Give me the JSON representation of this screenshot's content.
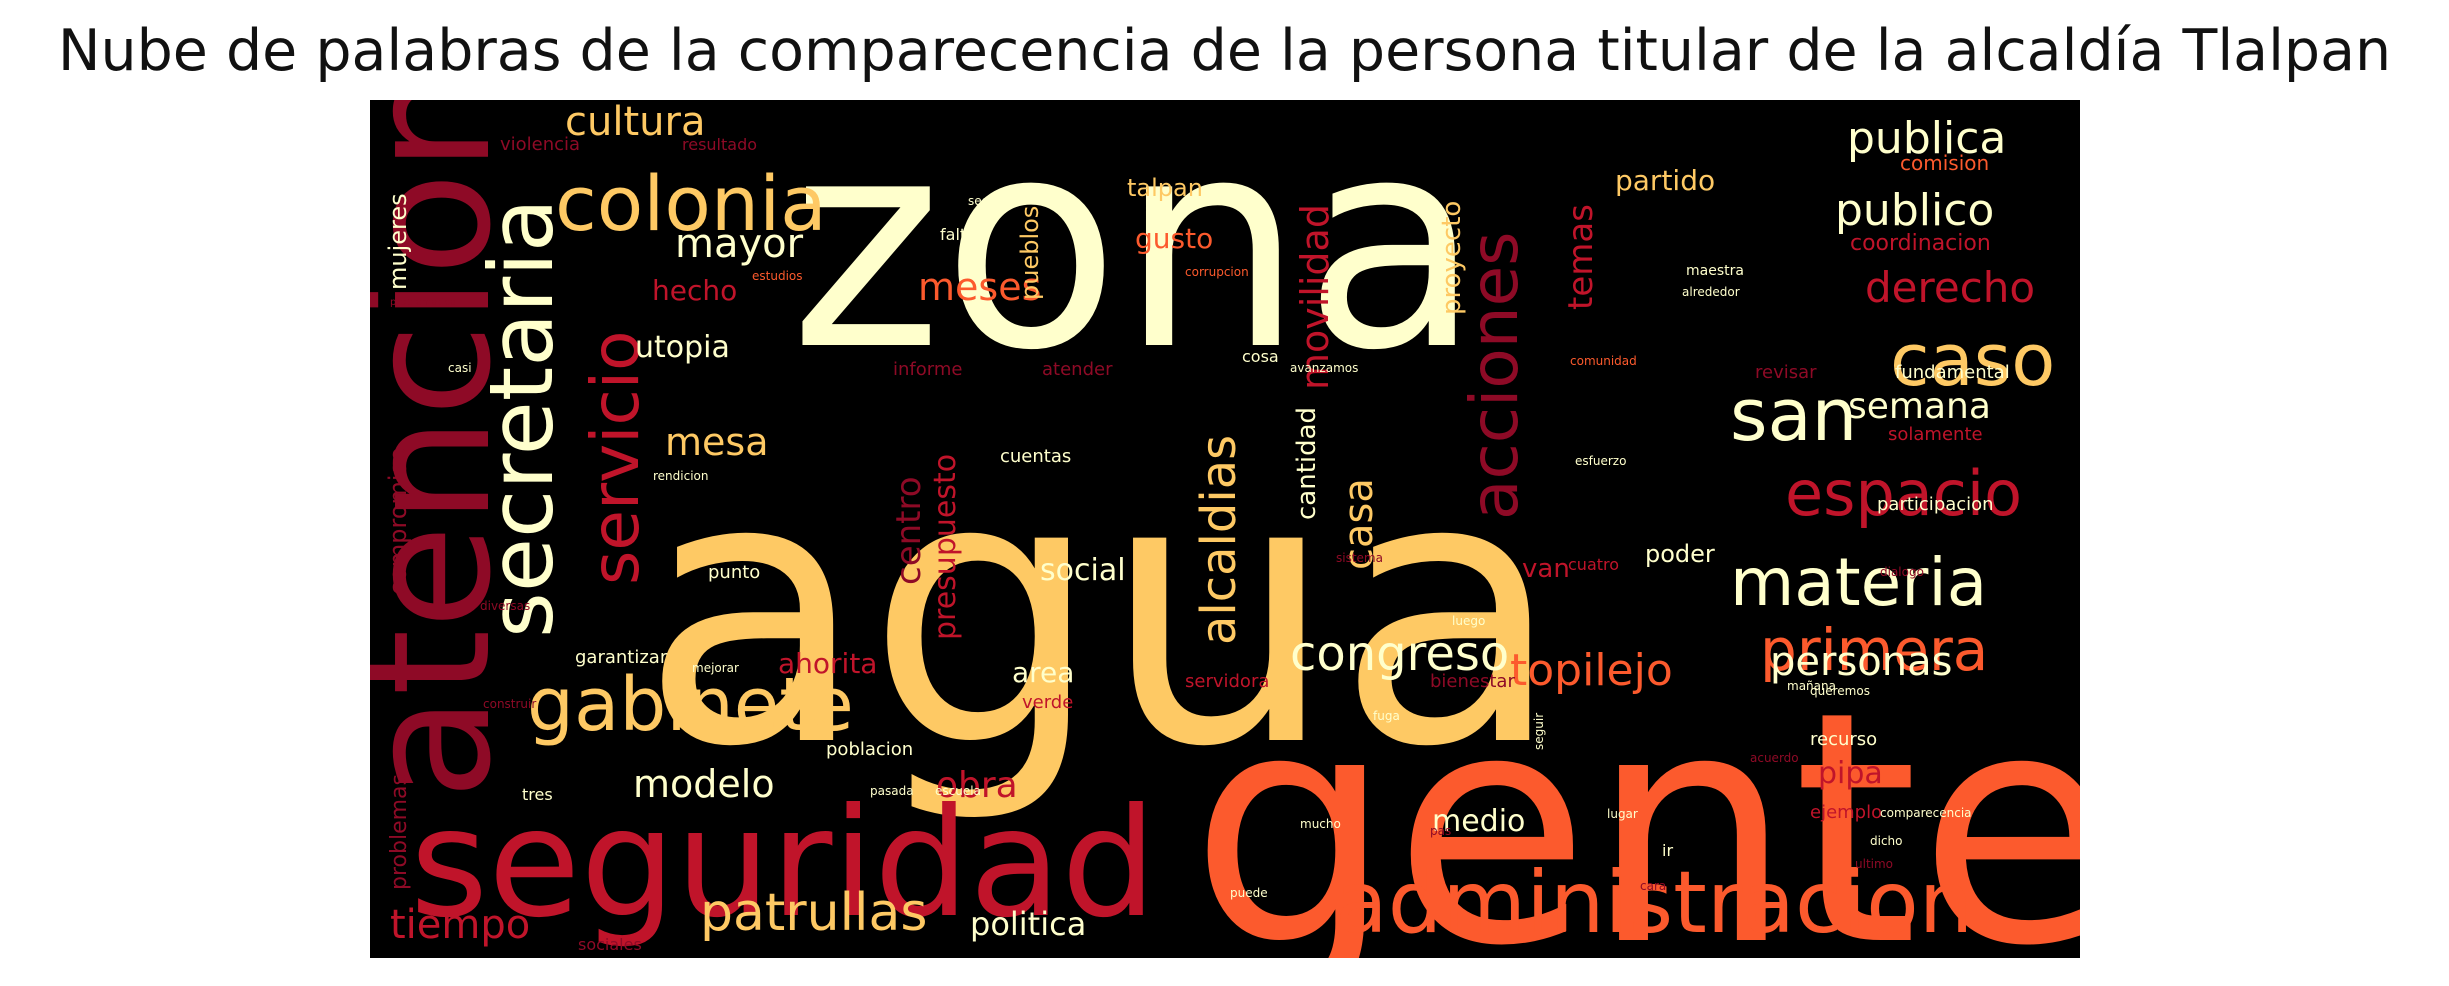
{
  "chart_data": {
    "type": "wordcloud",
    "title": "Nube de palabras de la comparecencia de la persona titular de la alcaldía Tlalpan",
    "background": "#000000",
    "palette": {
      "cream": "#FFFFCC",
      "gold": "#FEC964",
      "orange": "#FC5A2D",
      "red": "#C0142A",
      "darkred": "#8E0A26"
    },
    "words": [
      {
        "text": "zona",
        "weight": 1.0,
        "color": "#FFFFCC"
      },
      {
        "text": "agua",
        "weight": 0.98,
        "color": "#FEC964"
      },
      {
        "text": "gente",
        "weight": 0.93,
        "color": "#FC5A2D"
      },
      {
        "text": "atencion",
        "weight": 0.53,
        "color": "#8E0A26"
      },
      {
        "text": "seguridad",
        "weight": 0.53,
        "color": "#C0142A"
      },
      {
        "text": "secretaria",
        "weight": 0.29,
        "color": "#FFFFCC"
      },
      {
        "text": "colonia",
        "weight": 0.25,
        "color": "#FEC964"
      },
      {
        "text": "administracion",
        "weight": 0.26,
        "color": "#FC5A2D"
      },
      {
        "text": "gabinete",
        "weight": 0.24,
        "color": "#FEC964"
      },
      {
        "text": "acciones",
        "weight": 0.22,
        "color": "#8E0A26"
      },
      {
        "text": "servicio",
        "weight": 0.21,
        "color": "#C0142A"
      },
      {
        "text": "materia",
        "weight": 0.2,
        "color": "#FFFFCC"
      },
      {
        "text": "caso",
        "weight": 0.2,
        "color": "#FEC964"
      },
      {
        "text": "san",
        "weight": 0.2,
        "color": "#FFFFCC"
      },
      {
        "text": "espacio",
        "weight": 0.18,
        "color": "#C0142A"
      },
      {
        "text": "primera",
        "weight": 0.17,
        "color": "#FC5A2D"
      },
      {
        "text": "patrullas",
        "weight": 0.15,
        "color": "#FEC964"
      },
      {
        "text": "alcaldias",
        "weight": 0.14,
        "color": "#FEC964"
      },
      {
        "text": "congreso",
        "weight": 0.14,
        "color": "#FFFFCC"
      },
      {
        "text": "topilejo",
        "weight": 0.13,
        "color": "#FC5A2D"
      },
      {
        "text": "publico",
        "weight": 0.13,
        "color": "#FFFFCC"
      },
      {
        "text": "publica",
        "weight": 0.13,
        "color": "#FFFFCC"
      },
      {
        "text": "derecho",
        "weight": 0.13,
        "color": "#C0142A"
      },
      {
        "text": "tiempo",
        "weight": 0.13,
        "color": "#C0142A"
      },
      {
        "text": "movilidad",
        "weight": 0.12,
        "color": "#C0142A"
      },
      {
        "text": "personas",
        "weight": 0.12,
        "color": "#FFFFCC"
      },
      {
        "text": "cultura",
        "weight": 0.12,
        "color": "#FEC964"
      },
      {
        "text": "mayor",
        "weight": 0.12,
        "color": "#FFFFCC"
      },
      {
        "text": "meses",
        "weight": 0.12,
        "color": "#FC5A2D"
      },
      {
        "text": "modelo",
        "weight": 0.12,
        "color": "#FFFFCC"
      },
      {
        "text": "casa",
        "weight": 0.12,
        "color": "#FEC964"
      },
      {
        "text": "semana",
        "weight": 0.11,
        "color": "#FFFFCC"
      },
      {
        "text": "temas",
        "weight": 0.11,
        "color": "#C0142A"
      },
      {
        "text": "mesa",
        "weight": 0.11,
        "color": "#FEC964"
      },
      {
        "text": "obra",
        "weight": 0.11,
        "color": "#C0142A"
      },
      {
        "text": "politica",
        "weight": 0.1,
        "color": "#FFFFCC"
      },
      {
        "text": "centro",
        "weight": 0.1,
        "color": "#8E0A26"
      },
      {
        "text": "presupuesto",
        "weight": 0.09,
        "color": "#C0142A"
      },
      {
        "text": "hecho",
        "weight": 0.09,
        "color": "#C0142A"
      },
      {
        "text": "utopia",
        "weight": 0.09,
        "color": "#FFFFCC"
      },
      {
        "text": "social",
        "weight": 0.09,
        "color": "#FFFFCC"
      },
      {
        "text": "ahorita",
        "weight": 0.09,
        "color": "#C0142A"
      },
      {
        "text": "area",
        "weight": 0.09,
        "color": "#FFFFCC"
      },
      {
        "text": "medio",
        "weight": 0.09,
        "color": "#FFFFCC"
      },
      {
        "text": "pipa",
        "weight": 0.08,
        "color": "#C0142A"
      },
      {
        "text": "proyecto",
        "weight": 0.08,
        "color": "#FEC964"
      },
      {
        "text": "partido",
        "weight": 0.08,
        "color": "#FEC964"
      },
      {
        "text": "gusto",
        "weight": 0.08,
        "color": "#FC5A2D"
      },
      {
        "text": "talpan",
        "weight": 0.07,
        "color": "#FEC964"
      },
      {
        "text": "pueblos",
        "weight": 0.07,
        "color": "#FEC964"
      },
      {
        "text": "cantidad",
        "weight": 0.07,
        "color": "#FFFFCC"
      },
      {
        "text": "mujeres",
        "weight": 0.07,
        "color": "#FFFFCC"
      },
      {
        "text": "compromiso",
        "weight": 0.07,
        "color": "#8E0A26"
      },
      {
        "text": "van",
        "weight": 0.07,
        "color": "#C0142A"
      },
      {
        "text": "poder",
        "weight": 0.07,
        "color": "#FFFFCC"
      },
      {
        "text": "problemas",
        "weight": 0.06,
        "color": "#8E0A26"
      },
      {
        "text": "coordinacion",
        "weight": 0.06,
        "color": "#C0142A"
      },
      {
        "text": "comision",
        "weight": 0.05,
        "color": "#FC5A2D"
      },
      {
        "text": "participacion",
        "weight": 0.05,
        "color": "#FFFFCC"
      },
      {
        "text": "solamente",
        "weight": 0.05,
        "color": "#C0142A"
      },
      {
        "text": "fundamental",
        "weight": 0.05,
        "color": "#FFFFCC"
      },
      {
        "text": "revisar",
        "weight": 0.05,
        "color": "#8E0A26"
      },
      {
        "text": "ejemplo",
        "weight": 0.05,
        "color": "#C0142A"
      },
      {
        "text": "recurso",
        "weight": 0.05,
        "color": "#FFFFCC"
      },
      {
        "text": "servidora",
        "weight": 0.05,
        "color": "#C0142A"
      },
      {
        "text": "bienestar",
        "weight": 0.05,
        "color": "#8E0A26"
      },
      {
        "text": "garantizar",
        "weight": 0.05,
        "color": "#FFFFCC"
      },
      {
        "text": "poblacion",
        "weight": 0.05,
        "color": "#FFFFCC"
      },
      {
        "text": "verde",
        "weight": 0.05,
        "color": "#C0142A"
      },
      {
        "text": "informe",
        "weight": 0.05,
        "color": "#8E0A26"
      },
      {
        "text": "atender",
        "weight": 0.05,
        "color": "#8E0A26"
      },
      {
        "text": "cuentas",
        "weight": 0.04,
        "color": "#FFFFCC"
      },
      {
        "text": "cuatro",
        "weight": 0.04,
        "color": "#C0142A"
      },
      {
        "text": "punto",
        "weight": 0.04,
        "color": "#FFFFCC"
      },
      {
        "text": "violencia",
        "weight": 0.04,
        "color": "#8E0A26"
      },
      {
        "text": "resultado",
        "weight": 0.04,
        "color": "#8E0A26"
      },
      {
        "text": "falta",
        "weight": 0.04,
        "color": "#FFFFCC"
      },
      {
        "text": "cosa",
        "weight": 0.04,
        "color": "#FFFFCC"
      },
      {
        "text": "sociales",
        "weight": 0.04,
        "color": "#8E0A26"
      },
      {
        "text": "tres",
        "weight": 0.04,
        "color": "#FFFFCC"
      },
      {
        "text": "ir",
        "weight": 0.04,
        "color": "#FFFFCC"
      },
      {
        "text": "maestra",
        "weight": 0.03,
        "color": "#FFFFCC"
      },
      {
        "text": "alrededor",
        "weight": 0.03,
        "color": "#FFFFCC"
      },
      {
        "text": "hacemos",
        "weight": 0.03,
        "color": "#FFFFCC"
      },
      {
        "text": "estudios",
        "weight": 0.03,
        "color": "#FC5A2D"
      },
      {
        "text": "corrupcion",
        "weight": 0.03,
        "color": "#FC5A2D"
      },
      {
        "text": "esfuerzo",
        "weight": 0.03,
        "color": "#FFFFCC"
      },
      {
        "text": "lugar",
        "weight": 0.03,
        "color": "#FFFFCC"
      },
      {
        "text": "seguir",
        "weight": 0.03,
        "color": "#FFFFCC"
      },
      {
        "text": "comparecencia",
        "weight": 0.03,
        "color": "#FFFFCC"
      },
      {
        "text": "escuela",
        "weight": 0.03,
        "color": "#FFFFCC"
      },
      {
        "text": "pasada",
        "weight": 0.03,
        "color": "#FFFFCC"
      },
      {
        "text": "pas",
        "weight": 0.03,
        "color": "#8E0A26"
      },
      {
        "text": "acuerdo",
        "weight": 0.03,
        "color": "#8E0A26"
      },
      {
        "text": "segunda",
        "weight": 0.03,
        "color": "#FFFFCC"
      },
      {
        "text": "problematica",
        "weight": 0.03,
        "color": "#8E0A26"
      },
      {
        "text": "casi",
        "weight": 0.03,
        "color": "#FFFFCC"
      },
      {
        "text": "comunidad",
        "weight": 0.03,
        "color": "#FC5A2D"
      },
      {
        "text": "avanzamos",
        "weight": 0.03,
        "color": "#FFFFCC"
      },
      {
        "text": "sistema",
        "weight": 0.03,
        "color": "#8E0A26"
      },
      {
        "text": "dialogo",
        "weight": 0.03,
        "color": "#8E0A26"
      },
      {
        "text": "mejorar",
        "weight": 0.03,
        "color": "#FFFFCC"
      },
      {
        "text": "construir",
        "weight": 0.03,
        "color": "#8E0A26"
      },
      {
        "text": "diversas",
        "weight": 0.03,
        "color": "#8E0A26"
      },
      {
        "text": "rendicion",
        "weight": 0.03,
        "color": "#FFFFCC"
      },
      {
        "text": "fuga",
        "weight": 0.03,
        "color": "#FFFFCC"
      },
      {
        "text": "luego",
        "weight": 0.03,
        "color": "#FFFFCC"
      },
      {
        "text": "mañana",
        "weight": 0.03,
        "color": "#FFFFCC"
      },
      {
        "text": "queremos",
        "weight": 0.03,
        "color": "#FFFFCC"
      },
      {
        "text": "cara",
        "weight": 0.03,
        "color": "#8E0A26"
      },
      {
        "text": "ultimo",
        "weight": 0.03,
        "color": "#8E0A26"
      },
      {
        "text": "dicho",
        "weight": 0.03,
        "color": "#FFFFCC"
      },
      {
        "text": "puede",
        "weight": 0.03,
        "color": "#FFFFCC"
      },
      {
        "text": "mucho",
        "weight": 0.03,
        "color": "#FFFFCC"
      }
    ]
  }
}
